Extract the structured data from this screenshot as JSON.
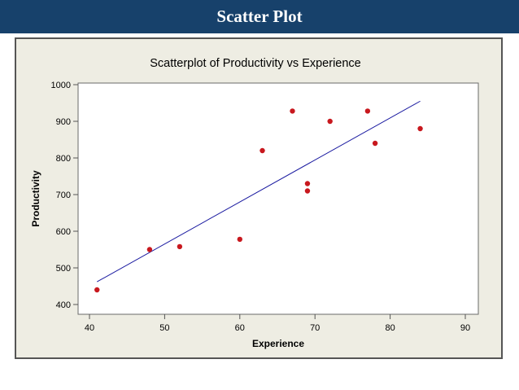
{
  "slide": {
    "title": "Scatter Plot"
  },
  "chart_data": {
    "type": "scatter",
    "title": "Scatterplot of Productivity vs Experience",
    "xlabel": "Experience",
    "ylabel": "Productivity",
    "xlim": [
      40,
      90
    ],
    "ylim": [
      400,
      1000
    ],
    "xticks": [
      40,
      50,
      60,
      70,
      80,
      90
    ],
    "yticks": [
      400,
      500,
      600,
      700,
      800,
      900,
      1000
    ],
    "grid": false,
    "legend": "none",
    "points_color": "#c8181e",
    "fit_line_color": "#1a1aa0",
    "series": [
      {
        "x": [
          41,
          48,
          52,
          60,
          63,
          67,
          69,
          69,
          72,
          77,
          78,
          84
        ],
        "y": [
          440,
          550,
          558,
          578,
          820,
          928,
          730,
          710,
          900,
          928,
          840,
          880
        ]
      }
    ],
    "fit_line": {
      "x": [
        41,
        84
      ],
      "y": [
        462,
        955
      ]
    }
  }
}
